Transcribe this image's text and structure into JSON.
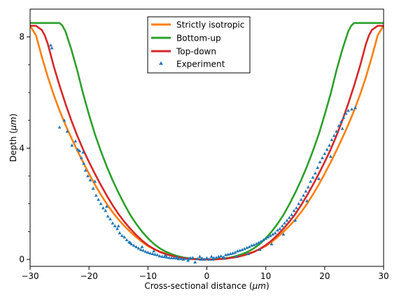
{
  "chart_data": {
    "type": "line",
    "title": "",
    "xlabel_main": "Cross-sectional distance (",
    "xlabel_unit": "μm",
    "xlabel_close": ")",
    "ylabel_main": "Depth (",
    "ylabel_unit": "μm",
    "ylabel_close": ")",
    "xlim": [
      -30,
      30
    ],
    "ylim": [
      -0.25,
      9.0
    ],
    "inverted_y_axis": false,
    "x_ticks": [
      -30,
      -20,
      -10,
      0,
      10,
      20,
      30
    ],
    "y_ticks": [
      0,
      4,
      8
    ],
    "x_tick_labels": [
      "−30",
      "−20",
      "−10",
      "0",
      "10",
      "20",
      "30"
    ],
    "y_tick_labels": [
      "0",
      "4",
      "8"
    ],
    "grid": false,
    "legend_position": "top-center",
    "series": [
      {
        "name": "Strictly isotropic",
        "color": "#ff7f0e",
        "style": "line",
        "x": [
          -30,
          -29,
          -28,
          -27,
          -26,
          -25,
          -24,
          -23,
          -22,
          -21,
          -20,
          -19,
          -18,
          -17,
          -16,
          -15,
          -14,
          -13,
          -12,
          -11,
          -10,
          -9,
          -8,
          -7,
          -6,
          -5,
          -4,
          -3,
          -2,
          -1,
          0,
          1,
          2,
          3,
          4,
          5,
          6,
          7,
          8,
          9,
          10,
          11,
          12,
          13,
          14,
          15,
          16,
          17,
          18,
          19,
          20,
          21,
          22,
          23,
          24,
          25,
          26,
          27,
          28,
          29,
          30
        ],
        "y": [
          8.4,
          8.06,
          7.28,
          6.56,
          5.92,
          5.35,
          4.84,
          4.37,
          3.92,
          3.49,
          3.08,
          2.69,
          2.33,
          2.0,
          1.7,
          1.43,
          1.2,
          0.99,
          0.8,
          0.63,
          0.48,
          0.37,
          0.28,
          0.21,
          0.15,
          0.1,
          0.06,
          0.03,
          0.01,
          0.0,
          0.0,
          0.0,
          0.01,
          0.03,
          0.06,
          0.1,
          0.15,
          0.21,
          0.28,
          0.37,
          0.48,
          0.63,
          0.8,
          0.99,
          1.2,
          1.43,
          1.7,
          2.0,
          2.33,
          2.69,
          3.08,
          3.49,
          3.92,
          4.37,
          4.84,
          5.35,
          5.92,
          6.56,
          7.28,
          8.06,
          8.4
        ]
      },
      {
        "name": "Bottom-up",
        "color": "#2ca02c",
        "style": "line",
        "x": [
          -30,
          -25,
          -24.5,
          -24,
          -23,
          -22,
          -21,
          -20,
          -19,
          -18,
          -17,
          -16,
          -15,
          -14,
          -13,
          -12,
          -11,
          -10,
          -9,
          -8,
          -7,
          -6,
          -5,
          -4,
          -3,
          -2,
          -1,
          0,
          1,
          2,
          3,
          4,
          5,
          6,
          7,
          8,
          9,
          10,
          11,
          12,
          13,
          14,
          15,
          16,
          17,
          18,
          19,
          20,
          21,
          22,
          23,
          24,
          24.5,
          25,
          30
        ],
        "y": [
          8.5,
          8.5,
          8.4,
          8.2,
          7.55,
          6.8,
          5.95,
          5.2,
          4.5,
          3.9,
          3.35,
          2.85,
          2.4,
          1.98,
          1.6,
          1.28,
          1.0,
          0.76,
          0.56,
          0.4,
          0.28,
          0.19,
          0.12,
          0.07,
          0.04,
          0.02,
          0.0,
          0.0,
          0.0,
          0.02,
          0.04,
          0.07,
          0.12,
          0.19,
          0.28,
          0.4,
          0.56,
          0.76,
          1.0,
          1.28,
          1.6,
          1.98,
          2.4,
          2.85,
          3.35,
          3.9,
          4.5,
          5.2,
          5.95,
          6.8,
          7.55,
          8.2,
          8.4,
          8.5,
          8.5
        ]
      },
      {
        "name": "Top-down",
        "color": "#d62728",
        "style": "line",
        "x": [
          -30,
          -29,
          -28,
          -27.5,
          -27,
          -26,
          -25,
          -24,
          -23,
          -22,
          -21,
          -20,
          -19,
          -18,
          -17,
          -16,
          -15,
          -14,
          -13,
          -12,
          -11,
          -10,
          -9,
          -8,
          -7,
          -6,
          -5,
          -4,
          -3,
          -2,
          -1,
          0,
          1,
          2,
          3,
          4,
          5,
          6,
          7,
          8,
          9,
          10,
          11,
          12,
          13,
          14,
          15,
          16,
          17,
          18,
          19,
          20,
          21,
          22,
          23,
          24,
          25,
          26,
          27,
          27.5,
          28,
          29,
          30
        ],
        "y": [
          8.4,
          8.4,
          8.25,
          8.05,
          7.75,
          6.95,
          6.25,
          5.6,
          5.0,
          4.45,
          3.95,
          3.5,
          3.08,
          2.68,
          2.3,
          1.95,
          1.63,
          1.35,
          1.1,
          0.88,
          0.68,
          0.51,
          0.38,
          0.27,
          0.19,
          0.13,
          0.08,
          0.05,
          0.02,
          0.01,
          0.0,
          0.0,
          0.0,
          0.01,
          0.02,
          0.05,
          0.08,
          0.13,
          0.19,
          0.27,
          0.38,
          0.51,
          0.68,
          0.88,
          1.1,
          1.35,
          1.63,
          1.95,
          2.3,
          2.68,
          3.08,
          3.5,
          3.95,
          4.45,
          5.0,
          5.6,
          6.25,
          6.95,
          7.75,
          8.05,
          8.25,
          8.4,
          8.4
        ]
      },
      {
        "name": "Experiment",
        "color": "#1f77b4",
        "style": "triangle-markers",
        "x": [
          -26.5,
          -26.3,
          -25,
          -24.2,
          -23.7,
          -22.9,
          -22.3,
          -21.9,
          -21.6,
          -21.3,
          -20.9,
          -20.6,
          -20.2,
          -19.8,
          -19.3,
          -18.8,
          -18.4,
          -18.0,
          -17.6,
          -17.2,
          -16.8,
          -16.4,
          -16.0,
          -15.6,
          -15.2,
          -14.8,
          -14.4,
          -14.0,
          -13.6,
          -13.2,
          -12.8,
          -12.4,
          -12.0,
          -11.6,
          -11.2,
          -10.8,
          -10.4,
          -10.0,
          -9.6,
          -9.2,
          -8.8,
          -8.4,
          -8.0,
          -7.6,
          -7.2,
          -6.8,
          -6.4,
          -6.0,
          -5.6,
          -5.2,
          -4.8,
          -4.4,
          -4.0,
          -3.6,
          -3.2,
          -2.8,
          -2.4,
          -2.0,
          -1.6,
          -1.2,
          -0.8,
          -0.4,
          0.0,
          0.4,
          0.8,
          1.2,
          1.6,
          2.0,
          2.4,
          2.8,
          3.2,
          3.6,
          4.0,
          4.4,
          4.8,
          5.2,
          5.6,
          6.0,
          6.4,
          6.8,
          7.2,
          7.6,
          8.0,
          8.4,
          8.8,
          9.2,
          9.6,
          10.0,
          10.4,
          10.8,
          11.2,
          11.6,
          12.0,
          12.4,
          12.8,
          13.2,
          13.6,
          14.0,
          14.4,
          14.8,
          15.2,
          15.6,
          16.0,
          16.4,
          16.8,
          17.2,
          17.6,
          18.0,
          18.4,
          18.8,
          19.2,
          19.6,
          20.0,
          20.4,
          20.8,
          21.2,
          21.6,
          22.0,
          22.4,
          22.8,
          23.2,
          23.6,
          24.0,
          24.6,
          25.2,
          -21.0,
          -19.0,
          -17.0,
          -15.0,
          -13.0,
          -11.0,
          -9.0,
          -7.0,
          -5.0,
          -3.0,
          -1.0,
          1.0,
          3.0,
          5.0,
          7.0,
          9.0,
          11.0,
          13.0,
          15.0,
          17.0,
          19.0,
          21.0,
          23.0
        ],
        "y": [
          7.7,
          7.6,
          4.75,
          5.0,
          4.6,
          4.1,
          4.25,
          3.95,
          3.9,
          3.65,
          3.45,
          3.2,
          3.0,
          2.85,
          2.55,
          2.3,
          2.15,
          2.0,
          1.85,
          1.75,
          1.55,
          1.45,
          1.3,
          1.2,
          1.1,
          0.95,
          0.85,
          0.8,
          0.7,
          0.62,
          0.55,
          0.5,
          0.45,
          0.4,
          0.35,
          0.32,
          0.28,
          0.25,
          0.22,
          0.2,
          0.18,
          0.16,
          0.12,
          0.1,
          0.09,
          0.08,
          0.06,
          0.05,
          0.05,
          0.04,
          0.02,
          0.02,
          0.0,
          0.03,
          -0.04,
          0.05,
          0.06,
          -0.1,
          0.02,
          0.1,
          0.04,
          0.0,
          0.05,
          0.0,
          0.1,
          0.05,
          0.06,
          0.1,
          0.12,
          0.08,
          0.16,
          0.18,
          0.2,
          0.22,
          0.25,
          0.3,
          0.32,
          0.35,
          0.38,
          0.42,
          0.45,
          0.5,
          0.52,
          0.56,
          0.6,
          0.65,
          0.7,
          0.75,
          0.8,
          0.85,
          0.9,
          0.95,
          1.05,
          1.1,
          1.2,
          1.3,
          1.4,
          1.5,
          1.6,
          1.75,
          1.85,
          2.0,
          2.15,
          2.3,
          2.45,
          2.6,
          2.8,
          2.95,
          3.1,
          3.3,
          3.5,
          3.65,
          3.8,
          3.95,
          4.1,
          4.3,
          4.45,
          4.6,
          4.8,
          4.95,
          5.1,
          5.25,
          5.35,
          5.4,
          5.45,
          3.85,
          2.8,
          1.9,
          1.2,
          0.6,
          0.45,
          0.3,
          0.15,
          0.08,
          0.02,
          0.0,
          0.0,
          0.04,
          0.1,
          0.2,
          0.35,
          0.55,
          0.9,
          1.4,
          2.1,
          2.9,
          3.7,
          4.7
        ]
      }
    ]
  }
}
